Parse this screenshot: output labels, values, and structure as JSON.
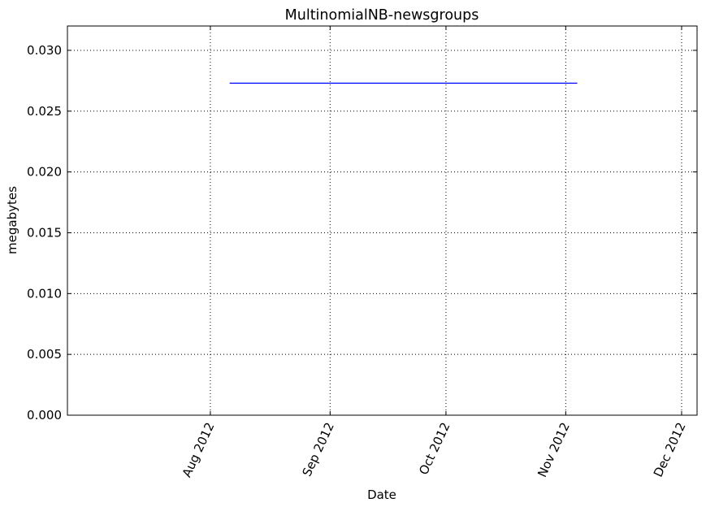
{
  "chart_data": {
    "type": "line",
    "title": "MultinomialNB-newsgroups",
    "xlabel": "Date",
    "ylabel": "megabytes",
    "x_type": "date",
    "xlim": [
      "2012-06-25",
      "2012-12-05"
    ],
    "ylim": [
      0,
      0.032
    ],
    "x_ticks": [
      {
        "date": "2012-08-01",
        "label": "Aug 2012"
      },
      {
        "date": "2012-09-01",
        "label": "Sep 2012"
      },
      {
        "date": "2012-10-01",
        "label": "Oct 2012"
      },
      {
        "date": "2012-11-01",
        "label": "Nov 2012"
      },
      {
        "date": "2012-12-01",
        "label": "Dec 2012"
      }
    ],
    "y_ticks": [
      {
        "value": 0.0,
        "label": "0.000"
      },
      {
        "value": 0.005,
        "label": "0.005"
      },
      {
        "value": 0.01,
        "label": "0.010"
      },
      {
        "value": 0.015,
        "label": "0.015"
      },
      {
        "value": 0.02,
        "label": "0.020"
      },
      {
        "value": 0.025,
        "label": "0.025"
      },
      {
        "value": 0.03,
        "label": "0.030"
      }
    ],
    "grid": true,
    "series": [
      {
        "color": "#0000ff",
        "points": [
          {
            "x": "2012-08-06",
            "y": 0.0273
          },
          {
            "x": "2012-11-04",
            "y": 0.0273
          }
        ]
      }
    ]
  }
}
